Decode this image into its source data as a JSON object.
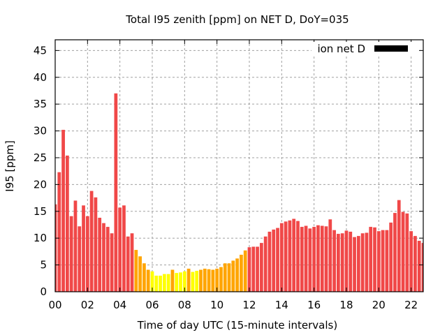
{
  "chart_data": {
    "type": "bar",
    "title": "Total I95 zenith [ppm] on NET D, DoY=035",
    "xlabel": "Time of day UTC (15-minute intervals)",
    "ylabel": "I95 [ppm]",
    "xlim": [
      0,
      22.75
    ],
    "ylim": [
      0,
      47
    ],
    "grid": true,
    "legend": {
      "label": "ion net D",
      "placement": "top-right"
    },
    "x_ticks": [
      {
        "v": 0,
        "label": "00"
      },
      {
        "v": 2,
        "label": "02"
      },
      {
        "v": 4,
        "label": "04"
      },
      {
        "v": 6,
        "label": "06"
      },
      {
        "v": 8,
        "label": "08"
      },
      {
        "v": 10,
        "label": "10"
      },
      {
        "v": 12,
        "label": "12"
      },
      {
        "v": 14,
        "label": "14"
      },
      {
        "v": 16,
        "label": "16"
      },
      {
        "v": 18,
        "label": "18"
      },
      {
        "v": 20,
        "label": "20"
      },
      {
        "v": 22,
        "label": "22"
      }
    ],
    "y_ticks": [
      {
        "v": 0,
        "label": "0"
      },
      {
        "v": 5,
        "label": "5"
      },
      {
        "v": 10,
        "label": "10"
      },
      {
        "v": 15,
        "label": "15"
      },
      {
        "v": 20,
        "label": "20"
      },
      {
        "v": 25,
        "label": "25"
      },
      {
        "v": 30,
        "label": "30"
      },
      {
        "v": 35,
        "label": "35"
      },
      {
        "v": 40,
        "label": "40"
      },
      {
        "v": 45,
        "label": "45"
      }
    ],
    "interval_hours": 0.25,
    "values": [
      16.3,
      22.3,
      30.2,
      25.4,
      14.1,
      17.0,
      12.2,
      16.1,
      14.1,
      18.8,
      17.6,
      13.8,
      12.8,
      12.1,
      10.9,
      37.0,
      15.7,
      16.1,
      10.3,
      10.9,
      7.8,
      6.6,
      5.3,
      4.1,
      3.8,
      3.0,
      3.0,
      3.3,
      3.3,
      4.1,
      3.5,
      3.6,
      3.8,
      4.3,
      3.7,
      3.9,
      4.1,
      4.3,
      4.2,
      4.1,
      4.3,
      4.6,
      5.3,
      5.3,
      5.8,
      6.2,
      6.9,
      7.7,
      8.3,
      8.4,
      8.4,
      9.1,
      10.3,
      11.2,
      11.6,
      11.9,
      12.8,
      13.1,
      13.3,
      13.6,
      13.2,
      12.1,
      12.3,
      11.8,
      12.1,
      12.4,
      12.3,
      12.2,
      13.5,
      11.5,
      10.8,
      10.9,
      11.4,
      11.2,
      10.2,
      10.4,
      10.9,
      11.0,
      12.1,
      12.0,
      11.3,
      11.5,
      11.5,
      12.9,
      14.7,
      17.1,
      14.9,
      14.6,
      11.3,
      10.4,
      9.5,
      9.1
    ],
    "color_thresholds": [
      {
        "below": 4,
        "color": "#ffff00"
      },
      {
        "below": 8,
        "color": "#ffa500"
      },
      {
        "below": 1000,
        "color": "#f04848"
      }
    ]
  }
}
